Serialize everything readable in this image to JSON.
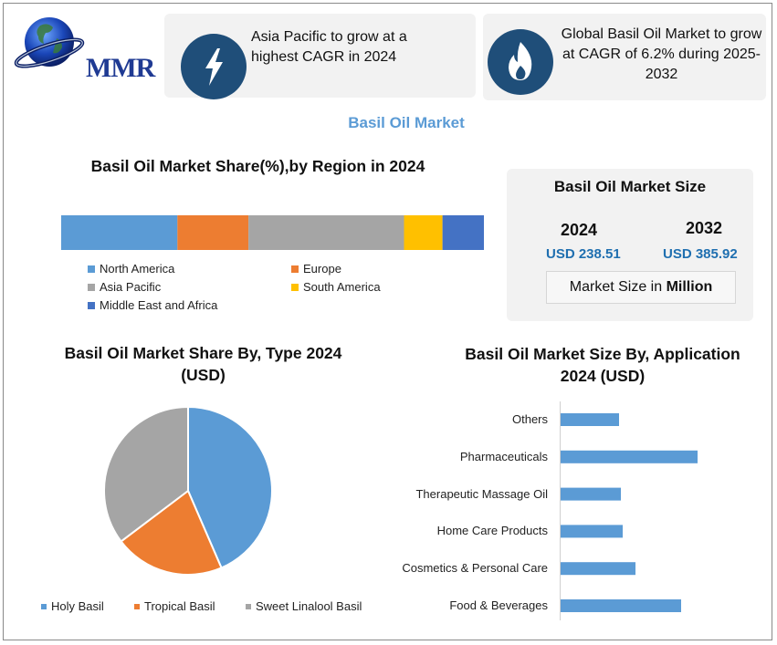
{
  "brand": {
    "logo_text": "MMR"
  },
  "cards": [
    {
      "icon": "lightning-icon",
      "text": "Asia Pacific to grow at a highest CAGR in 2024"
    },
    {
      "icon": "flame-icon",
      "text": "Global Basil Oil Market to grow at CAGR of 6.2% during 2025-2032"
    }
  ],
  "main_title": "Basil Oil Market",
  "market_size": {
    "title": "Basil Oil Market Size",
    "year1": "2024",
    "value1": "USD 238.51",
    "year2": "2032",
    "value2": "USD 385.92",
    "unit_prefix": "Market Size in ",
    "unit_bold": "Million"
  },
  "colors": {
    "blue_light": "#5b9bd5",
    "orange": "#ed7d31",
    "gray": "#a5a5a5",
    "yellow": "#ffc000",
    "blue_dark": "#4472c4",
    "navy": "#1f4e79"
  },
  "chart_data": [
    {
      "type": "bar",
      "orientation": "stacked-horizontal",
      "title": "Basil Oil Market Share(%),by Region in 2024",
      "categories": [
        "2024"
      ],
      "series": [
        {
          "name": "North America",
          "values": [
            27.5
          ],
          "color": "#5b9bd5"
        },
        {
          "name": "Europe",
          "values": [
            16.8
          ],
          "color": "#ed7d31"
        },
        {
          "name": "Asia Pacific",
          "values": [
            36.8
          ],
          "color": "#a5a5a5"
        },
        {
          "name": "South America",
          "values": [
            9.1
          ],
          "color": "#ffc000"
        },
        {
          "name": "Middle East and Africa",
          "values": [
            9.8
          ],
          "color": "#4472c4"
        }
      ],
      "legend": "bottom"
    },
    {
      "type": "pie",
      "title": "Basil Oil Market  Share By, Type 2024 (USD)",
      "categories": [
        "Holy Basil",
        "Tropical Basil",
        "Sweet Linalool Basil"
      ],
      "values": [
        43.5,
        21.2,
        35.3
      ],
      "colors": [
        "#5b9bd5",
        "#ed7d31",
        "#a5a5a5"
      ],
      "legend": "bottom"
    },
    {
      "type": "bar",
      "orientation": "horizontal",
      "title": "Basil Oil Market Size By, Application 2024  (USD)",
      "categories": [
        "Others",
        "Pharmaceuticals",
        "Therapeutic Massage Oil",
        "Home Care Products",
        "Cosmetics & Personal Care",
        "Food & Beverages"
      ],
      "values": [
        32,
        75,
        33,
        34,
        41,
        66
      ],
      "color": "#5b9bd5",
      "grid": false
    }
  ]
}
